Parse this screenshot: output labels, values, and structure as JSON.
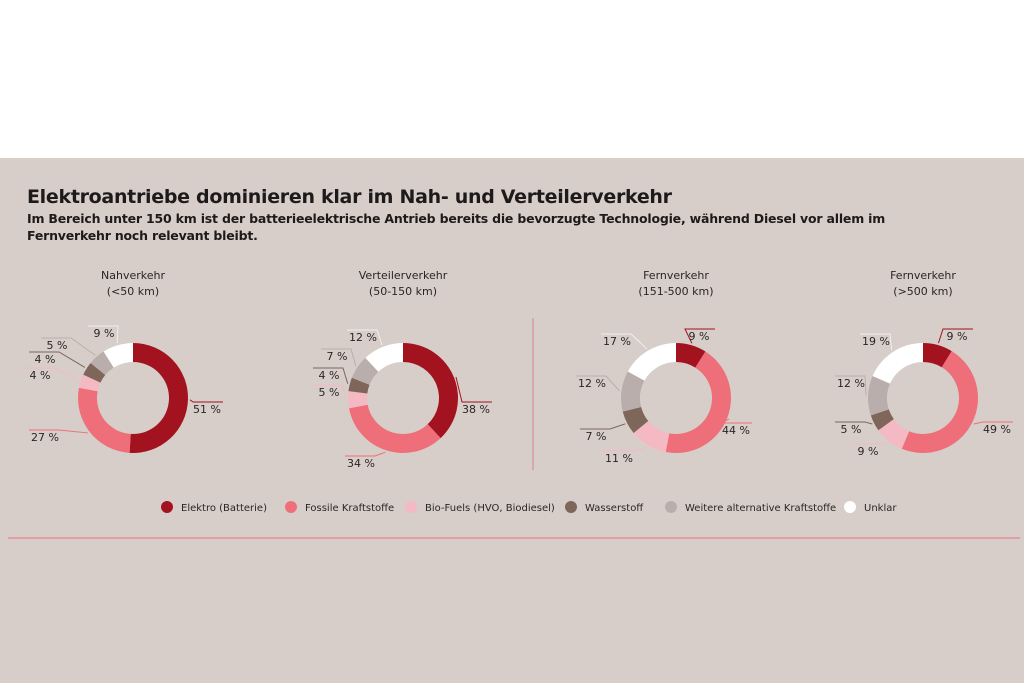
{
  "title": "Elektroantriebe dominieren klar im Nah- und Verteilerverkehr",
  "subtitle": "Im Bereich unter 150 km ist der batterieelektrische Antrieb bereits die bevorzugte Technologie, während Diesel vor allem im Fernverkehr noch relevant bleibt.",
  "chart_data": {
    "type": "pie",
    "variant": "donut",
    "series_names": [
      "Elektro (Batterie)",
      "Fossile Kraftstoffe",
      "Bio-Fuels (HVO, Biodiesel)",
      "Wasserstoff",
      "Weitere alternative Kraftstoffe",
      "Unklar"
    ],
    "colors": [
      "#a3121f",
      "#ee6f79",
      "#f4b9c3",
      "#7e665b",
      "#b9aeab",
      "#ffffff"
    ],
    "legend_position": "bottom",
    "charts": [
      {
        "title": [
          "Nahverkehr",
          "(<50 km)"
        ],
        "values": [
          51,
          27,
          4,
          4,
          5,
          9
        ]
      },
      {
        "title": [
          "Verteilerverkehr",
          "(50-150 km)"
        ],
        "values": [
          38,
          34,
          5,
          4,
          7,
          12
        ]
      },
      {
        "title": [
          "Fernverkehr",
          "(151-500 km)"
        ],
        "values": [
          9,
          44,
          11,
          7,
          12,
          17
        ]
      },
      {
        "title": [
          "Fernverkehr",
          "(>500 km)"
        ],
        "values": [
          9,
          49,
          9,
          5,
          12,
          19
        ]
      }
    ]
  }
}
